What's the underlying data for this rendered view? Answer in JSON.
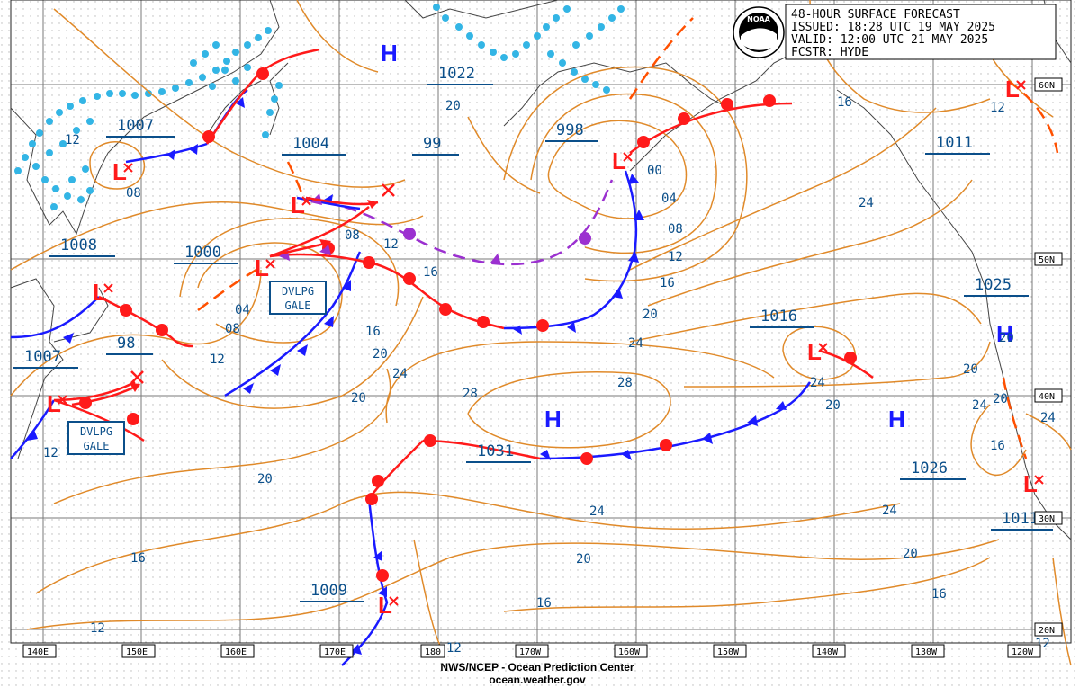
{
  "header": {
    "title": "48-HOUR SURFACE FORECAST",
    "issued": "ISSUED: 18:28 UTC 19 MAY 2025",
    "valid": "VALID:  12:00 UTC 21 MAY 2025",
    "forecaster": "FCSTR: HYDE"
  },
  "logo": {
    "text": "NOAA"
  },
  "credit": {
    "line1": "NWS/NCEP - Ocean Prediction Center",
    "line2": "ocean.weather.gov"
  },
  "lon_labels": [
    "140E",
    "150E",
    "160E",
    "170E",
    "180",
    "170W",
    "160W",
    "150W",
    "140W",
    "130W",
    "120W"
  ],
  "lat_labels": [
    "60N",
    "50N",
    "40N",
    "30N",
    "20N"
  ],
  "pressure_centers": [
    {
      "type": "L",
      "pressure": "1007"
    },
    {
      "type": "L",
      "pressure": "1004"
    },
    {
      "type": "L",
      "pressure": "1000"
    },
    {
      "type": "L",
      "pressure": "998"
    },
    {
      "type": "L",
      "pressure": "1008"
    },
    {
      "type": "L",
      "pressure": "1007"
    },
    {
      "type": "L",
      "pressure": "1009"
    },
    {
      "type": "L",
      "pressure": "1016"
    },
    {
      "type": "L",
      "pressure": "1011"
    },
    {
      "type": "L",
      "pressure": "1011"
    },
    {
      "type": "H",
      "pressure": "1022"
    },
    {
      "type": "H",
      "pressure": "1031"
    },
    {
      "type": "H",
      "pressure": "1026"
    },
    {
      "type": "H",
      "pressure": "1025"
    }
  ],
  "partial_labels": [
    "99",
    "98"
  ],
  "warnings": [
    "DVLPG\nGALE",
    "DVLPG\nGALE"
  ],
  "isobar_labels": [
    "12",
    "08",
    "20",
    "08",
    "12",
    "00",
    "04",
    "08",
    "12",
    "16",
    "20",
    "24",
    "28",
    "24",
    "20",
    "16",
    "12",
    "04",
    "08",
    "12",
    "16",
    "20",
    "24",
    "16",
    "20",
    "24",
    "20",
    "24",
    "28",
    "24",
    "20",
    "16",
    "20",
    "24",
    "20",
    "16",
    "20",
    "24",
    "16",
    "12",
    "12",
    "12",
    "12",
    "16",
    "20"
  ]
}
